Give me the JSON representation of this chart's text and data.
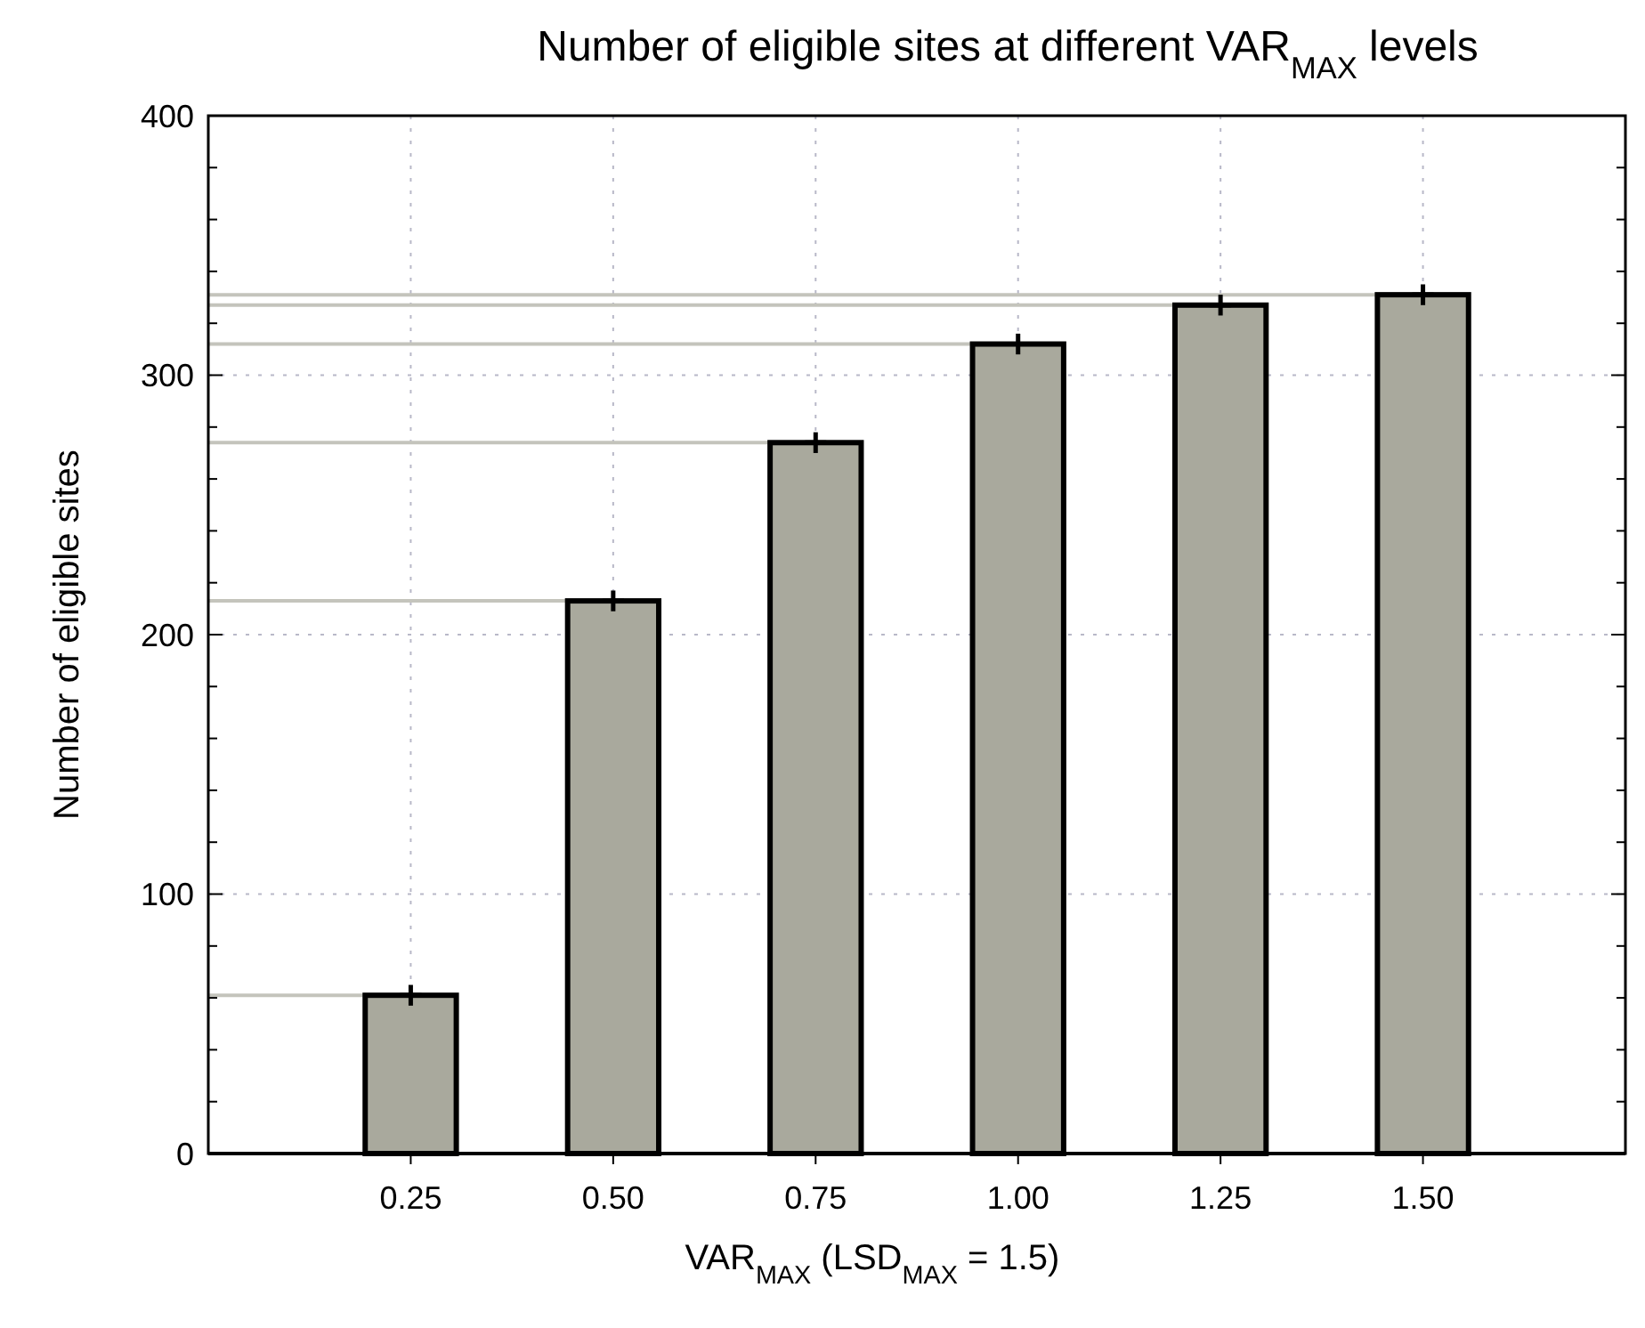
{
  "chart_data": {
    "type": "bar",
    "title": "Number of eligible sites at different VAR$_{MAX}$ levels",
    "xlabel": "VAR$_{MAX}$ (LSD$_{MAX}$ = 1.5)",
    "ylabel": "Number of eligible sites",
    "categories": [
      "0.25",
      "0.50",
      "0.75",
      "1.00",
      "1.25",
      "1.50"
    ],
    "values": [
      61,
      213,
      274,
      312,
      327,
      331
    ],
    "errors": [
      4,
      4,
      4,
      4,
      4,
      4
    ],
    "color": "#a9a99d",
    "ylim": [
      0,
      400
    ],
    "yticks": [
      0,
      {
        "value": 20,
        "label": null
      },
      {
        "value": 40,
        "label": null
      },
      {
        "value": 60,
        "label": null
      },
      {
        "value": 80,
        "label": null
      },
      100,
      {
        "value": 120,
        "label": null
      },
      {
        "value": 140,
        "label": null
      },
      {
        "value": 160,
        "label": null
      },
      {
        "value": 180,
        "label": null
      },
      200,
      {
        "value": 220,
        "label": null
      },
      {
        "value": 240,
        "label": null
      },
      {
        "value": 260,
        "label": null
      },
      {
        "value": 280,
        "label": null
      },
      300,
      {
        "value": 320,
        "label": null
      },
      {
        "value": 340,
        "label": null
      },
      {
        "value": 360,
        "label": null
      },
      {
        "value": 380,
        "label": null
      },
      400
    ],
    "grid": true,
    "ref_lines": [
      {
        "axis": "y",
        "value": 61,
        "color": "#c4c4bc"
      },
      {
        "axis": "y",
        "value": 213,
        "color": "#c4c4bc"
      },
      {
        "axis": "y",
        "value": 274,
        "color": "#c4c4bc"
      },
      {
        "axis": "y",
        "value": 312,
        "color": "#c4c4bc"
      },
      {
        "axis": "y",
        "value": 327,
        "color": "#c4c4bc"
      },
      {
        "axis": "y",
        "value": 331,
        "color": "#c4c4bc"
      }
    ]
  }
}
